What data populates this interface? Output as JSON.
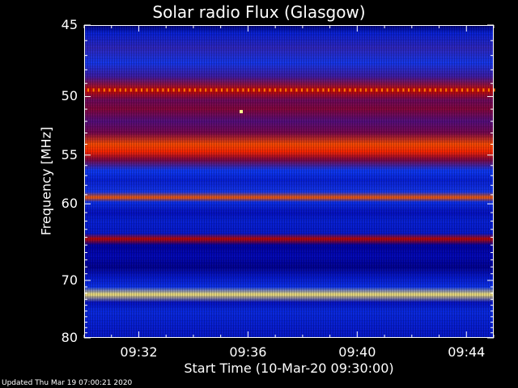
{
  "chart_data": {
    "type": "heatmap",
    "title": "Solar radio Flux (Glasgow)",
    "xlabel": "Start Time (10-Mar-20 09:30:00)",
    "ylabel": "Frequency [MHz]",
    "x_ticks": [
      "09:32",
      "09:36",
      "09:40",
      "09:44"
    ],
    "y_ticks": [
      "45",
      "50",
      "55",
      "60",
      "70",
      "80"
    ],
    "ylim": [
      45,
      80
    ],
    "xlim": [
      "09:30:00",
      "09:45:00"
    ],
    "colormap": [
      "#000050",
      "#0000b4",
      "#0c3cff",
      "#5a0a78",
      "#b40000",
      "#ff2000",
      "#ff8000",
      "#ffff90"
    ],
    "bands": [
      {
        "freq": 45.0,
        "intensity": 0.05
      },
      {
        "freq": 45.5,
        "intensity": 0.22
      },
      {
        "freq": 46.5,
        "intensity": 0.35
      },
      {
        "freq": 47.5,
        "intensity": 0.3
      },
      {
        "freq": 48.5,
        "intensity": 0.38
      },
      {
        "freq": 49.5,
        "intensity": 0.62
      },
      {
        "freq": 50.3,
        "intensity": 0.46
      },
      {
        "freq": 51.0,
        "intensity": 0.5
      },
      {
        "freq": 52.0,
        "intensity": 0.42
      },
      {
        "freq": 53.0,
        "intensity": 0.48
      },
      {
        "freq": 54.0,
        "intensity": 0.78
      },
      {
        "freq": 54.7,
        "intensity": 0.72
      },
      {
        "freq": 55.4,
        "intensity": 0.5
      },
      {
        "freq": 56.5,
        "intensity": 0.28
      },
      {
        "freq": 57.5,
        "intensity": 0.22
      },
      {
        "freq": 58.7,
        "intensity": 0.3
      },
      {
        "freq": 59.3,
        "intensity": 0.8
      },
      {
        "freq": 59.8,
        "intensity": 0.26
      },
      {
        "freq": 61.0,
        "intensity": 0.18
      },
      {
        "freq": 62.0,
        "intensity": 0.22
      },
      {
        "freq": 63.5,
        "intensity": 0.2
      },
      {
        "freq": 64.2,
        "intensity": 0.6
      },
      {
        "freq": 65.0,
        "intensity": 0.12
      },
      {
        "freq": 66.5,
        "intensity": 0.16
      },
      {
        "freq": 68.0,
        "intensity": 0.1
      },
      {
        "freq": 69.5,
        "intensity": 0.2
      },
      {
        "freq": 71.0,
        "intensity": 0.26
      },
      {
        "freq": 72.2,
        "intensity": 0.98
      },
      {
        "freq": 73.5,
        "intensity": 0.18
      },
      {
        "freq": 75.0,
        "intensity": 0.24
      },
      {
        "freq": 77.0,
        "intensity": 0.22
      },
      {
        "freq": 79.0,
        "intensity": 0.2
      },
      {
        "freq": 80.0,
        "intensity": 0.2
      }
    ],
    "spike": {
      "time": "09:35:45",
      "freq": 51.2,
      "intensity": 1.0
    }
  },
  "footer": {
    "updated": "Updated Thu Mar 19 07:00:21 2020"
  }
}
